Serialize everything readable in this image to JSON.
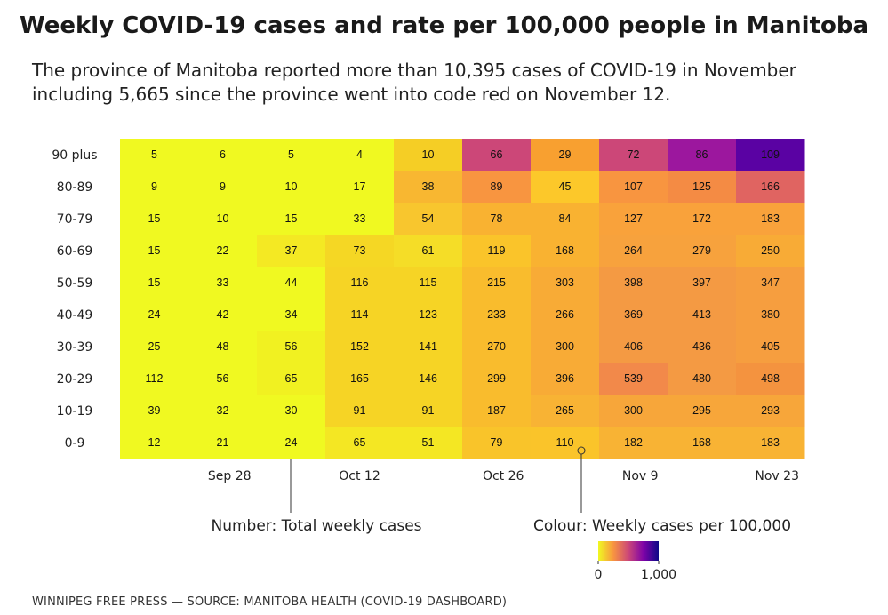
{
  "title": "Weekly COVID-19 cases and rate per 100,000 people in Manitoba",
  "subtitle": "The province of Manitoba reported more than 10,395 cases of COVID-19 in November including 5,665 since the province went into code red on November 12.",
  "footer": "WINNIPEG FREE PRESS — SOURCE: MANITOBA HEALTH (COVID-19 DASHBOARD)",
  "annotations": {
    "number": "Number: Total weekly cases",
    "colour": "Colour: Weekly cases per 100,000"
  },
  "legend": {
    "min_label": "0",
    "max_label": "1,000",
    "colors": [
      "#f0f921",
      "#f89540",
      "#cc4778",
      "#7e03a8",
      "#0d0887"
    ]
  },
  "chart_data": {
    "type": "heatmap",
    "x_tick_labels": [
      "Sep 28",
      "Oct 12",
      "Oct 26",
      "Nov 9",
      "Nov 23"
    ],
    "rows": [
      "90 plus",
      "80-89",
      "70-79",
      "60-69",
      "50-59",
      "40-49",
      "30-39",
      "20-29",
      "10-19",
      "0-9"
    ],
    "values": [
      [
        5,
        6,
        5,
        4,
        10,
        66,
        29,
        72,
        86,
        109
      ],
      [
        9,
        9,
        10,
        17,
        38,
        89,
        45,
        107,
        125,
        166
      ],
      [
        15,
        10,
        15,
        33,
        54,
        78,
        84,
        127,
        172,
        183
      ],
      [
        15,
        22,
        37,
        73,
        61,
        119,
        168,
        264,
        279,
        250
      ],
      [
        15,
        33,
        44,
        116,
        115,
        215,
        303,
        398,
        397,
        347
      ],
      [
        24,
        42,
        34,
        114,
        123,
        233,
        266,
        369,
        413,
        380
      ],
      [
        25,
        48,
        56,
        152,
        141,
        270,
        300,
        406,
        436,
        405
      ],
      [
        112,
        56,
        65,
        165,
        146,
        299,
        396,
        539,
        480,
        498
      ],
      [
        39,
        32,
        30,
        91,
        91,
        187,
        265,
        300,
        295,
        293
      ],
      [
        12,
        21,
        24,
        65,
        51,
        79,
        110,
        182,
        168,
        183
      ]
    ],
    "colors": [
      [
        "#f0f921",
        "#f0f921",
        "#f0f921",
        "#f0f921",
        "#f5ce25",
        "#cc4778",
        "#f8a030",
        "#cc4778",
        "#9c179e",
        "#5a02a3"
      ],
      [
        "#f0f921",
        "#f0f921",
        "#f0f921",
        "#f0f921",
        "#f8b731",
        "#f89540",
        "#fcc82a",
        "#f89540",
        "#f48b44",
        "#e06461"
      ],
      [
        "#f0f921",
        "#f0f921",
        "#f0f921",
        "#f0f921",
        "#f8c62e",
        "#f9b231",
        "#f9b231",
        "#f9a23b",
        "#f9a23b",
        "#f9a23b"
      ],
      [
        "#f0f921",
        "#f0f921",
        "#f4e923",
        "#f5d724",
        "#f5dd27",
        "#fac42a",
        "#f9b231",
        "#f7a23d",
        "#f7a23d",
        "#f8ab36"
      ],
      [
        "#f0f921",
        "#f0f921",
        "#f0f921",
        "#f6d425",
        "#f6d425",
        "#f9bc2d",
        "#f8ab36",
        "#f49a43",
        "#f49a43",
        "#f69e3f"
      ],
      [
        "#f0f921",
        "#f0f921",
        "#f0f921",
        "#f6d425",
        "#f6d425",
        "#f9bc2d",
        "#f8ab36",
        "#f49a43",
        "#f49a43",
        "#f69e3f"
      ],
      [
        "#f0f921",
        "#f0f921",
        "#f1f121",
        "#f6d425",
        "#f6d425",
        "#f9bc2d",
        "#f8ab36",
        "#f49a43",
        "#f49a43",
        "#f69e3f"
      ],
      [
        "#f0f921",
        "#f0f921",
        "#f1f121",
        "#f6d425",
        "#f6d425",
        "#f9bc2d",
        "#f8ab36",
        "#f2894a",
        "#f49a43",
        "#f4933f"
      ],
      [
        "#f0f921",
        "#f0f921",
        "#f0f921",
        "#f6d425",
        "#f6d425",
        "#f9bc2d",
        "#f8b334",
        "#f7a63a",
        "#f7a63a",
        "#f7a63a"
      ],
      [
        "#f0f921",
        "#f0f921",
        "#f0f921",
        "#f4e723",
        "#f4e723",
        "#f9c42a",
        "#fac42a",
        "#f8b334",
        "#f8b334",
        "#f8b334"
      ]
    ],
    "color_scale_range": [
      0,
      1000
    ],
    "grid": false
  }
}
